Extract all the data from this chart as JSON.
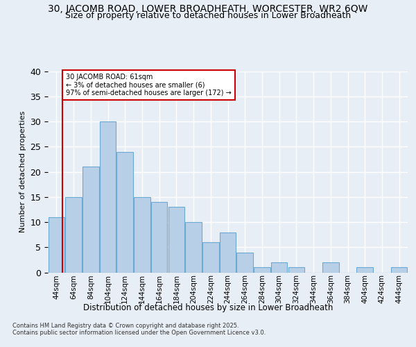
{
  "title1": "30, JACOMB ROAD, LOWER BROADHEATH, WORCESTER, WR2 6QW",
  "title2": "Size of property relative to detached houses in Lower Broadheath",
  "xlabel": "Distribution of detached houses by size in Lower Broadheath",
  "ylabel": "Number of detached properties",
  "footer": "Contains HM Land Registry data © Crown copyright and database right 2025.\nContains public sector information licensed under the Open Government Licence v3.0.",
  "bins": [
    "44sqm",
    "64sqm",
    "84sqm",
    "104sqm",
    "124sqm",
    "144sqm",
    "164sqm",
    "184sqm",
    "204sqm",
    "224sqm",
    "244sqm",
    "264sqm",
    "284sqm",
    "304sqm",
    "324sqm",
    "344sqm",
    "364sqm",
    "384sqm",
    "404sqm",
    "424sqm",
    "444sqm"
  ],
  "values": [
    11,
    15,
    21,
    30,
    24,
    15,
    14,
    13,
    10,
    6,
    8,
    4,
    1,
    2,
    1,
    0,
    2,
    0,
    1,
    0,
    1
  ],
  "bar_color": "#b8cfe8",
  "bar_edge_color": "#6aaad4",
  "annotation_text": "30 JACOMB ROAD: 61sqm\n← 3% of detached houses are smaller (6)\n97% of semi-detached houses are larger (172) →",
  "annotation_box_color": "#ffffff",
  "annotation_box_edge": "#cc0000",
  "vline_color": "#cc0000",
  "ylim": [
    0,
    40
  ],
  "bg_color": "#e8eef5",
  "grid_color": "#ffffff",
  "title1_fontsize": 10,
  "title2_fontsize": 9,
  "ylabel_fontsize": 8,
  "xlabel_fontsize": 8.5,
  "footer_fontsize": 6,
  "annotation_fontsize": 7,
  "tick_fontsize": 7.5
}
